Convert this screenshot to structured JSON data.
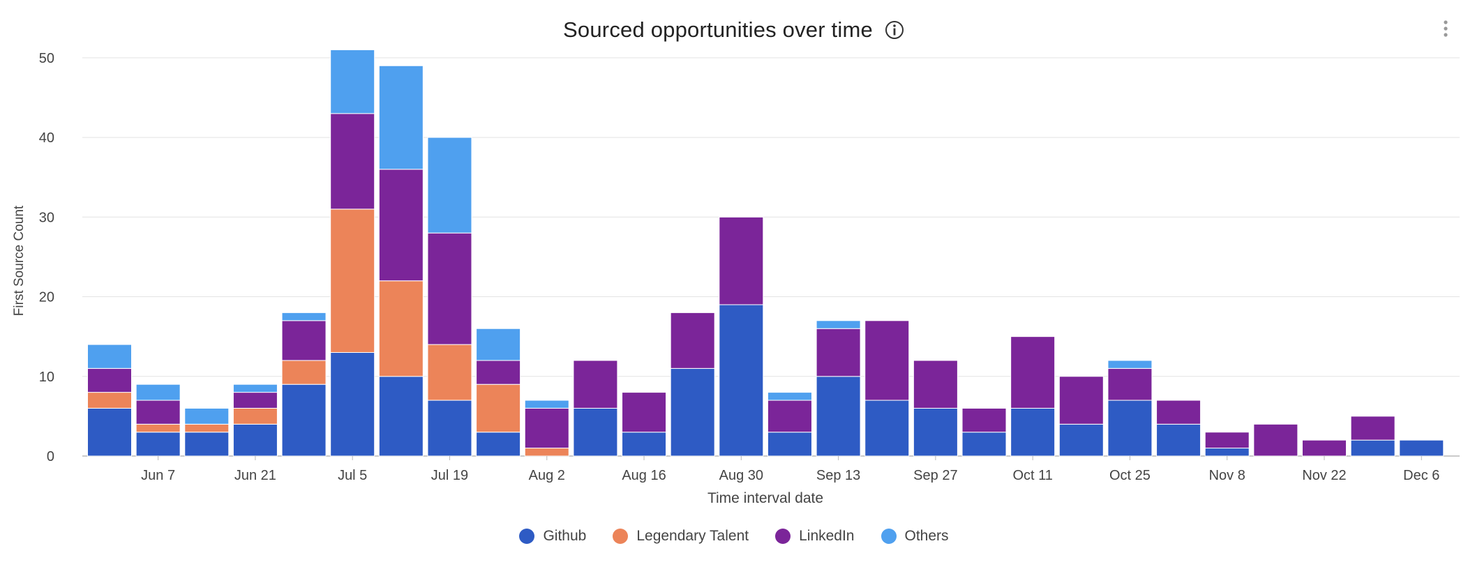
{
  "header": {
    "title": "Sourced opportunities over time",
    "info_icon": "info-circle-icon",
    "menu_icon": "vertical-ellipsis-icon"
  },
  "chart_data": {
    "type": "bar",
    "stacked": true,
    "title": "Sourced opportunities over time",
    "xlabel": "Time interval date",
    "ylabel": "First Source Count",
    "ylim": [
      0,
      52
    ],
    "yticks": [
      0,
      10,
      20,
      30,
      40,
      50
    ],
    "grid": true,
    "legend_position": "bottom",
    "xtick_labels": [
      "Jun 7",
      "Jun 21",
      "Jul 5",
      "Jul 19",
      "Aug 2",
      "Aug 16",
      "Aug 30",
      "Sep 13",
      "Sep 27",
      "Oct 11",
      "Oct 25",
      "Nov 8",
      "Nov 22",
      "Dec 6"
    ],
    "categories": [
      "May 31",
      "Jun 7",
      "Jun 14",
      "Jun 21",
      "Jun 28",
      "Jul 5",
      "Jul 12",
      "Jul 19",
      "Jul 26",
      "Aug 2",
      "Aug 9",
      "Aug 16",
      "Aug 23",
      "Aug 30",
      "Sep 6",
      "Sep 13",
      "Sep 20",
      "Sep 27",
      "Oct 4",
      "Oct 11",
      "Oct 18",
      "Oct 25",
      "Nov 1",
      "Nov 8",
      "Nov 15",
      "Nov 22",
      "Nov 29",
      "Dec 6"
    ],
    "series": [
      {
        "name": "Github",
        "color": "#2e5bc4",
        "values": [
          6,
          3,
          3,
          4,
          9,
          13,
          10,
          7,
          3,
          0,
          6,
          3,
          11,
          19,
          3,
          10,
          7,
          6,
          3,
          6,
          4,
          7,
          4,
          1,
          0,
          0,
          2,
          2
        ]
      },
      {
        "name": "Legendary Talent",
        "color": "#ec8459",
        "values": [
          2,
          1,
          1,
          2,
          3,
          18,
          12,
          7,
          6,
          1,
          0,
          0,
          0,
          0,
          0,
          0,
          0,
          0,
          0,
          0,
          0,
          0,
          0,
          0,
          0,
          0,
          0,
          0
        ]
      },
      {
        "name": "LinkedIn",
        "color": "#7b2599",
        "values": [
          3,
          3,
          0,
          2,
          5,
          12,
          14,
          14,
          3,
          5,
          6,
          5,
          7,
          11,
          4,
          6,
          10,
          6,
          3,
          9,
          6,
          4,
          3,
          2,
          4,
          2,
          3,
          0
        ]
      },
      {
        "name": "Others",
        "color": "#4fa0ef",
        "values": [
          3,
          2,
          2,
          1,
          1,
          8,
          13,
          12,
          4,
          1,
          0,
          0,
          0,
          0,
          1,
          1,
          0,
          0,
          0,
          0,
          0,
          1,
          0,
          0,
          0,
          0,
          0,
          0
        ]
      }
    ]
  }
}
